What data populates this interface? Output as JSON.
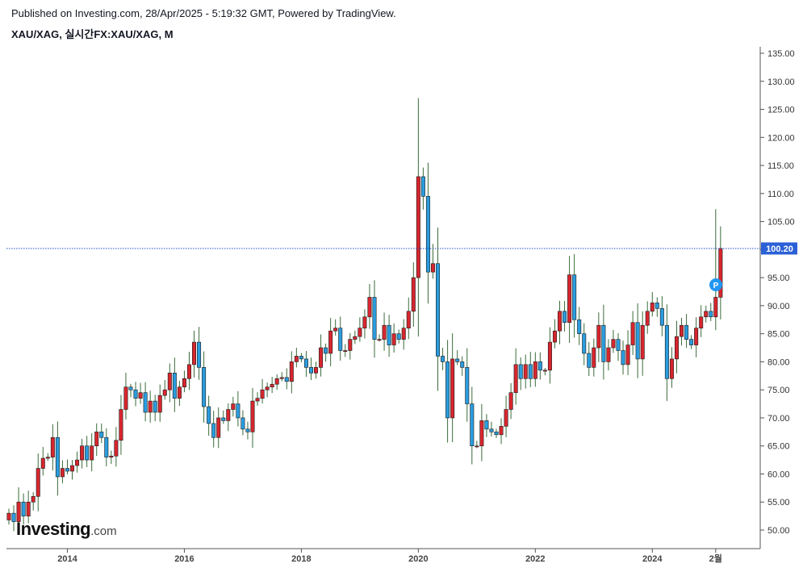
{
  "header": {
    "published": "Published on Investing.com, 28/Apr/2025 - 5:19:32 GMT, Powered by TradingView.",
    "symbol": "XAU/XAG, 실시간FX:XAU/XAG, M"
  },
  "logo": {
    "brand": "Investing",
    "suffix": ".com"
  },
  "price_label": "100.20",
  "event_marker": "P",
  "colors": {
    "up": "#d8262e",
    "down": "#2a9ddf",
    "wick": "#3a6b3a",
    "price_line": "#1e53c8",
    "price_badge": "#2b60d6"
  },
  "chart_data": {
    "type": "candlestick",
    "title": "XAU/XAG, 실시간FX:XAU/XAG, M",
    "y_ticks": [
      50,
      55,
      60,
      65,
      70,
      75,
      80,
      85,
      90,
      95,
      100,
      105,
      110,
      115,
      120,
      125,
      130,
      135
    ],
    "y_tick_labels": [
      "50.00",
      "55.00",
      "60.00",
      "65.00",
      "70.00",
      "75.00",
      "80.00",
      "85.00",
      "90.00",
      "95.00",
      "100.00",
      "105.00",
      "110.00",
      "115.00",
      "120.00",
      "125.00",
      "130.00",
      "135.00"
    ],
    "ylim": [
      46.5,
      136.5
    ],
    "x_tick_labels": [
      {
        "label": "2014",
        "t": 12
      },
      {
        "label": "2016",
        "t": 36
      },
      {
        "label": "2018",
        "t": 60
      },
      {
        "label": "2020",
        "t": 84
      },
      {
        "label": "2022",
        "t": 108
      },
      {
        "label": "2024",
        "t": 132
      },
      {
        "label": "2월",
        "t": 145
      }
    ],
    "last_price": 100.2,
    "grid": false,
    "legend": "none",
    "closes": [
      53.0,
      51.5,
      55.0,
      52.5,
      55.0,
      56.0,
      61.0,
      62.8,
      63.0,
      66.5,
      59.5,
      61.0,
      60.5,
      61.5,
      62.5,
      65.0,
      62.5,
      65.0,
      67.5,
      66.5,
      63.0,
      63.2,
      66.0,
      71.5,
      75.5,
      75.0,
      73.5,
      74.5,
      71.0,
      73.0,
      71.0,
      74.0,
      75.0,
      78.0,
      73.5,
      75.5,
      77.0,
      79.5,
      83.5,
      79.0,
      72.0,
      69.0,
      66.5,
      70.0,
      69.5,
      71.5,
      72.5,
      70.0,
      68.0,
      67.5,
      73.0,
      73.5,
      75.0,
      75.5,
      76.0,
      77.0,
      77.2,
      76.5,
      80.0,
      81.0,
      80.5,
      79.0,
      78.0,
      79.0,
      82.5,
      81.5,
      85.5,
      86.0,
      82.0,
      82.0,
      84.0,
      84.5,
      86.0,
      88.0,
      91.5,
      84.0,
      84.0,
      86.5,
      83.0,
      85.0,
      84.0,
      86.0,
      89.0,
      95.0,
      113.0,
      109.5,
      96.0,
      97.5,
      81.0,
      80.0,
      70.0,
      80.5,
      80.0,
      79.0,
      72.5,
      65.0,
      65.0,
      69.5,
      68.0,
      67.5,
      67.0,
      68.5,
      71.5,
      74.5,
      79.5,
      77.0,
      79.5,
      77.0,
      80.0,
      78.5,
      78.5,
      83.5,
      85.5,
      89.0,
      87.0,
      95.5,
      87.5,
      85.0,
      81.5,
      79.0,
      82.5,
      86.5,
      80.0,
      82.5,
      84.0,
      82.0,
      79.5,
      83.0,
      87.0,
      80.5,
      86.5,
      89.0,
      90.5,
      89.5,
      86.5,
      77.0,
      80.5,
      84.5,
      86.5,
      84.0,
      83.0,
      86.0,
      88.0,
      89.0,
      88.0,
      91.5,
      100.2
    ]
  }
}
